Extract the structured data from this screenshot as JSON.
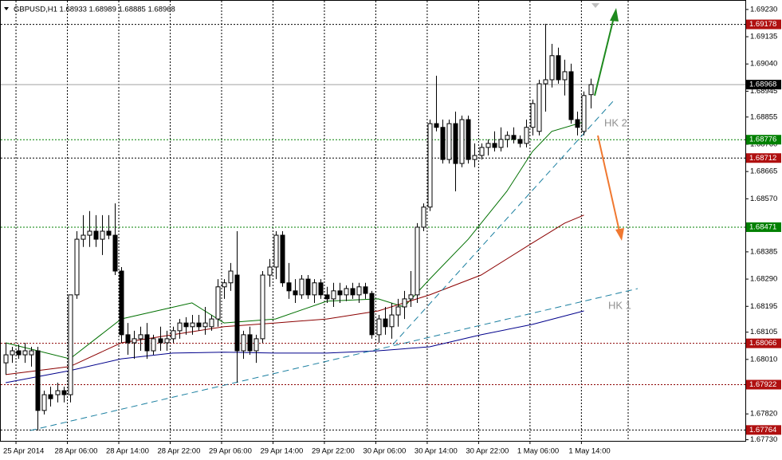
{
  "chart_data": {
    "type": "candlestick",
    "title": "GBPUSD,H1 1.68933 1.68989 1.68885 1.68968",
    "ylim": [
      1.67726,
      1.69263
    ],
    "xlim": [
      -0.875,
      115.125
    ],
    "grid": true,
    "yticks": [
      {
        "value": 1.6923,
        "label": "1.69230"
      },
      1.69135,
      {
        "value": 1.6904,
        "label": "1.69040"
      },
      1.68945,
      1.68855,
      {
        "value": 1.6876,
        "label": "1.68760"
      },
      1.68665,
      {
        "value": 1.6857,
        "label": "1.68570"
      },
      1.68385,
      {
        "value": 1.6829,
        "label": "1.68290"
      },
      1.68195,
      1.68105,
      {
        "value": 1.6801,
        "label": "1.68010"
      },
      {
        "value": 1.6782,
        "label": "1.67820"
      },
      {
        "value": 1.6773,
        "label": "1.67730"
      }
    ],
    "xticks": [
      {
        "value": 0,
        "label": "25 Apr 2014"
      },
      {
        "value": 8,
        "label": "28 Apr 06:00"
      },
      {
        "value": 16,
        "label": "28 Apr 14:00"
      },
      {
        "value": 24,
        "label": "28 Apr 22:00"
      },
      {
        "value": 32,
        "label": "29 Apr 06:00"
      },
      {
        "value": 40,
        "label": "29 Apr 14:00"
      },
      {
        "value": 48,
        "label": "29 Apr 22:00"
      },
      {
        "value": 56,
        "label": "30 Apr 06:00"
      },
      {
        "value": 64,
        "label": "30 Apr 14:00"
      },
      {
        "value": 72,
        "label": "30 Apr 22:00"
      },
      {
        "value": 80,
        "label": "1 May 06:00"
      },
      {
        "value": 88,
        "label": "1 May 14:00"
      }
    ],
    "bull_color": "#ffffff",
    "bear_color": "#000000",
    "ohlc": [
      [
        1.67998,
        1.68068,
        1.67957,
        1.68026
      ],
      [
        1.68026,
        1.68054,
        1.67998,
        1.6804
      ],
      [
        1.6804,
        1.68062,
        1.68012,
        1.68026
      ],
      [
        1.68026,
        1.68068,
        1.67998,
        1.6804
      ],
      [
        1.68026,
        1.68054,
        1.67985,
        1.6804
      ],
      [
        1.6804,
        1.68054,
        1.67762,
        1.67832
      ],
      [
        1.67832,
        1.67901,
        1.67818,
        1.67887
      ],
      [
        1.67887,
        1.67915,
        1.67846,
        1.67873
      ],
      [
        1.67887,
        1.67929,
        1.6786,
        1.67901
      ],
      [
        1.67901,
        1.67915,
        1.6786,
        1.67887
      ],
      [
        1.67887,
        1.68235,
        1.6786,
        1.68235
      ],
      [
        1.68235,
        1.68457,
        1.68221,
        1.68429
      ],
      [
        1.68429,
        1.68513,
        1.68402,
        1.68443
      ],
      [
        1.68443,
        1.68527,
        1.68402,
        1.68457
      ],
      [
        1.68457,
        1.68513,
        1.68402,
        1.68429
      ],
      [
        1.68429,
        1.68513,
        1.68374,
        1.68457
      ],
      [
        1.68457,
        1.68513,
        1.68429,
        1.68443
      ],
      [
        1.68443,
        1.68554,
        1.68304,
        1.68318
      ],
      [
        1.68318,
        1.68332,
        1.68068,
        1.68096
      ],
      [
        1.68096,
        1.68137,
        1.68026,
        1.68068
      ],
      [
        1.68068,
        1.6811,
        1.68012,
        1.68082
      ],
      [
        1.68082,
        1.68124,
        1.6804,
        1.68096
      ],
      [
        1.68096,
        1.68137,
        1.68012,
        1.6804
      ],
      [
        1.6804,
        1.68096,
        1.68026,
        1.68082
      ],
      [
        1.68082,
        1.68124,
        1.6804,
        1.68068
      ],
      [
        1.68068,
        1.6811,
        1.6804,
        1.68082
      ],
      [
        1.68082,
        1.68124,
        1.68068,
        1.6811
      ],
      [
        1.6811,
        1.68151,
        1.68082,
        1.68137
      ],
      [
        1.68137,
        1.68157,
        1.68096,
        1.68124
      ],
      [
        1.68124,
        1.68165,
        1.68096,
        1.68137
      ],
      [
        1.68137,
        1.68165,
        1.6811,
        1.68124
      ],
      [
        1.68124,
        1.68193,
        1.68096,
        1.68137
      ],
      [
        1.68124,
        1.68165,
        1.6811,
        1.68151
      ],
      [
        1.68151,
        1.6829,
        1.68124,
        1.68263
      ],
      [
        1.68263,
        1.6829,
        1.68221,
        1.68277
      ],
      [
        1.68277,
        1.68346,
        1.68249,
        1.68318
      ],
      [
        1.68304,
        1.68457,
        1.67929,
        1.6804
      ],
      [
        1.6804,
        1.6811,
        1.68012,
        1.68096
      ],
      [
        1.68096,
        1.68124,
        1.68026,
        1.6804
      ],
      [
        1.6804,
        1.68096,
        1.67998,
        1.68082
      ],
      [
        1.68082,
        1.68318,
        1.68068,
        1.68304
      ],
      [
        1.68304,
        1.6836,
        1.68263,
        1.68332
      ],
      [
        1.68332,
        1.68457,
        1.6829,
        1.68443
      ],
      [
        1.68443,
        1.68457,
        1.68263,
        1.68277
      ],
      [
        1.68277,
        1.68346,
        1.68221,
        1.68249
      ],
      [
        1.68249,
        1.6829,
        1.68207,
        1.68235
      ],
      [
        1.68235,
        1.68304,
        1.68221,
        1.6829
      ],
      [
        1.6829,
        1.68304,
        1.68221,
        1.68235
      ],
      [
        1.68235,
        1.6829,
        1.68207,
        1.68277
      ],
      [
        1.68277,
        1.6829,
        1.68221,
        1.68235
      ],
      [
        1.68235,
        1.68263,
        1.68207,
        1.68221
      ],
      [
        1.68221,
        1.68277,
        1.68193,
        1.68249
      ],
      [
        1.68249,
        1.68277,
        1.68207,
        1.68235
      ],
      [
        1.68235,
        1.68268,
        1.68213,
        1.68257
      ],
      [
        1.68257,
        1.68277,
        1.68221,
        1.68235
      ],
      [
        1.68235,
        1.68277,
        1.68207,
        1.68263
      ],
      [
        1.68263,
        1.68277,
        1.68221,
        1.6824
      ],
      [
        1.6824,
        1.68249,
        1.68082,
        1.68096
      ],
      [
        1.68096,
        1.68165,
        1.68068,
        1.68151
      ],
      [
        1.68151,
        1.68193,
        1.68096,
        1.68124
      ],
      [
        1.68124,
        1.68207,
        1.68082,
        1.68165
      ],
      [
        1.68165,
        1.68221,
        1.68124,
        1.68193
      ],
      [
        1.68193,
        1.68249,
        1.68151,
        1.68221
      ],
      [
        1.68221,
        1.68318,
        1.68193,
        1.68235
      ],
      [
        1.68235,
        1.68485,
        1.68207,
        1.68471
      ],
      [
        1.68471,
        1.68554,
        1.68457,
        1.68541
      ],
      [
        1.68541,
        1.68846,
        1.68527,
        1.68832
      ],
      [
        1.68832,
        1.68999,
        1.68805,
        1.68819
      ],
      [
        1.68819,
        1.68846,
        1.68693,
        1.68707
      ],
      [
        1.68707,
        1.68846,
        1.68693,
        1.68832
      ],
      [
        1.68832,
        1.68874,
        1.68596,
        1.68693
      ],
      [
        1.68693,
        1.6886,
        1.6868,
        1.68846
      ],
      [
        1.68846,
        1.6886,
        1.68693,
        1.68707
      ],
      [
        1.68707,
        1.68763,
        1.6868,
        1.68721
      ],
      [
        1.68721,
        1.68763,
        1.68707,
        1.68749
      ],
      [
        1.68749,
        1.68777,
        1.68721,
        1.68763
      ],
      [
        1.68763,
        1.68805,
        1.68735,
        1.68749
      ],
      [
        1.68749,
        1.68819,
        1.68735,
        1.68777
      ],
      [
        1.68777,
        1.68805,
        1.68749,
        1.68791
      ],
      [
        1.68791,
        1.68819,
        1.68763,
        1.68777
      ],
      [
        1.68777,
        1.68791,
        1.68749,
        1.68763
      ],
      [
        1.68763,
        1.68846,
        1.68749,
        1.68819
      ],
      [
        1.68819,
        1.68916,
        1.68791,
        1.68902
      ],
      [
        1.68805,
        1.68985,
        1.68791,
        1.68971
      ],
      [
        1.68971,
        1.6918,
        1.68874,
        1.68985
      ],
      [
        1.68985,
        1.6911,
        1.68958,
        1.69069
      ],
      [
        1.69069,
        1.69097,
        1.68971,
        1.68985
      ],
      [
        1.68985,
        1.69055,
        1.6893,
        1.69013
      ],
      [
        1.69013,
        1.69041,
        1.68832,
        1.68846
      ],
      [
        1.68846,
        1.68874,
        1.68791,
        1.68819
      ],
      [
        1.68805,
        1.68944,
        1.68791,
        1.6893
      ],
      [
        1.68933,
        1.68989,
        1.68885,
        1.68968
      ]
    ],
    "lines": [
      {
        "color": "#007000",
        "x": [
          0,
          10,
          18,
          29,
          34,
          42,
          50,
          58,
          62,
          66,
          72,
          78,
          82,
          85,
          90
        ],
        "values": [
          1.68068,
          1.68012,
          1.68151,
          1.68207,
          1.68137,
          1.68151,
          1.68213,
          1.68221,
          1.68193,
          1.6829,
          1.68429,
          1.68596,
          1.68735,
          1.68805,
          1.68838
        ]
      },
      {
        "color": "#8b0000",
        "x": [
          0,
          10,
          18,
          26,
          34,
          42,
          50,
          58,
          66,
          74,
          82,
          87,
          90
        ],
        "values": [
          1.67957,
          1.67985,
          1.68068,
          1.68096,
          1.68124,
          1.68137,
          1.68151,
          1.68179,
          1.68235,
          1.68304,
          1.68416,
          1.68485,
          1.68513
        ]
      },
      {
        "color": "#00008b",
        "x": [
          0,
          10,
          18,
          26,
          34,
          42,
          50,
          58,
          66,
          74,
          82,
          90
        ],
        "values": [
          1.67929,
          1.67971,
          1.68012,
          1.68032,
          1.68035,
          1.68032,
          1.68032,
          1.6804,
          1.68054,
          1.68096,
          1.68132,
          1.68179
        ]
      }
    ],
    "levels": [
      {
        "value": 1.69178,
        "line_color": "#000000",
        "label_color": "#b01010"
      },
      {
        "value": 1.68968,
        "line_color": "#a0a0a0",
        "label_color": "#000000"
      },
      {
        "value": 1.68776,
        "line_color": "#008000",
        "label_color": "#008000"
      },
      {
        "value": 1.68712,
        "line_color": "#000000",
        "label_color": "#b01010"
      },
      {
        "value": 1.68471,
        "line_color": "#008000",
        "label_color": "#008000"
      },
      {
        "value": 1.68066,
        "line_color": "#8b0000",
        "label_color": "#b01010"
      },
      {
        "value": 1.67922,
        "line_color": "#8b0000",
        "label_color": "#b01010"
      },
      {
        "value": 1.67764,
        "line_color": "#000000",
        "label_color": "#b01010"
      }
    ],
    "annotations": [
      "HK 2",
      "HK 1"
    ]
  }
}
